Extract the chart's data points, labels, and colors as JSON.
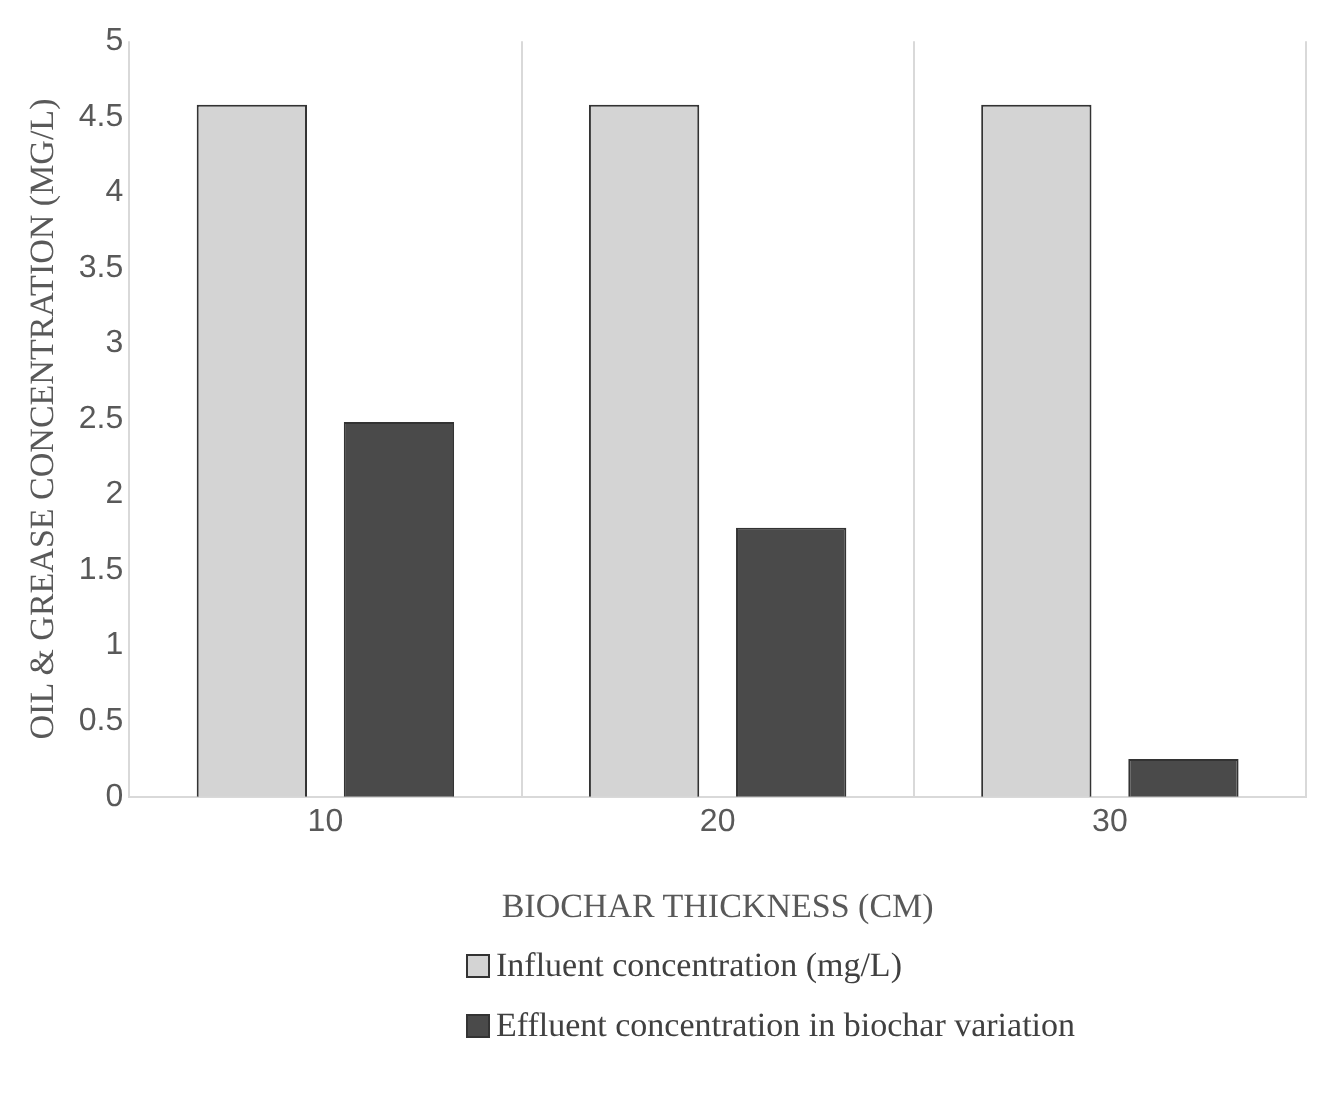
{
  "chart_data": {
    "type": "bar",
    "xlabel": "BIOCHAR THICKNESS (CM)",
    "ylabel": "OIL & GREASE CONCENTRATION (MG/L)",
    "categories": [
      "10",
      "20",
      "30"
    ],
    "series": [
      {
        "name": "Influent concentration (mg/L)",
        "color": "#d4d4d4",
        "values": [
          4.58,
          4.58,
          4.58
        ]
      },
      {
        "name": "Effluent concentration in biochar variation",
        "color": "#4a4a4a",
        "values": [
          2.48,
          1.78,
          0.25
        ]
      }
    ],
    "ylim": [
      0,
      5
    ],
    "yticks": [
      0,
      0.5,
      1,
      1.5,
      2,
      2.5,
      3,
      3.5,
      4,
      4.5,
      5
    ],
    "grid": "x",
    "legend": "bottom"
  }
}
